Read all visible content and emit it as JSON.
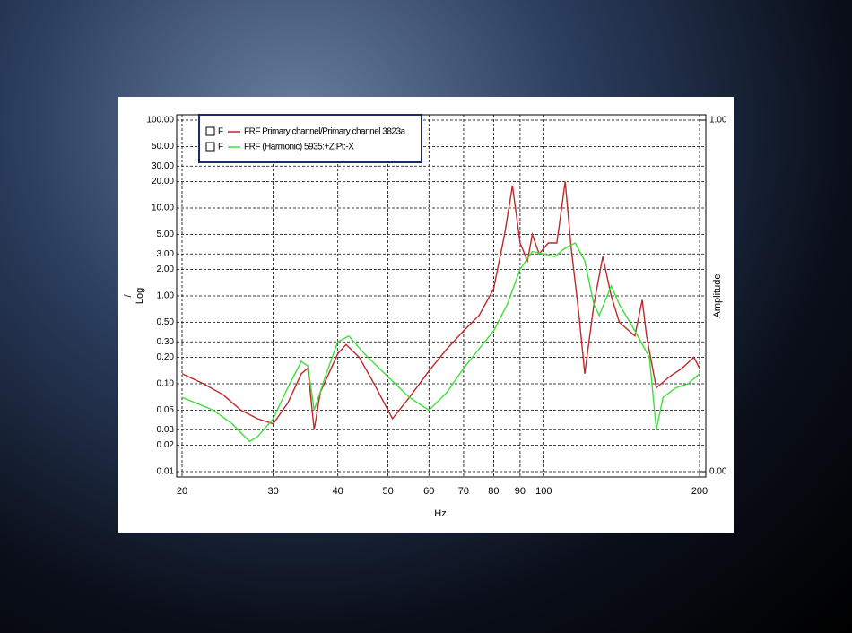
{
  "chart_data": {
    "type": "line",
    "xlabel": "Hz",
    "ylabel_lines": [
      "/",
      "Log"
    ],
    "y2label": "Amplitude",
    "xscale": "log",
    "yscale": "log",
    "grid": true,
    "xlim": [
      20,
      200
    ],
    "ylim": [
      0.01,
      100
    ],
    "y2lim": [
      0,
      1
    ],
    "xticks": [
      20,
      30,
      40,
      50,
      60,
      70,
      80,
      90,
      100,
      200
    ],
    "yticks": [
      0.01,
      0.02,
      0.03,
      0.05,
      {
        "value": 0.1,
        "label": "0.10"
      },
      {
        "value": 0.2,
        "label": "0.20"
      },
      {
        "value": 0.3,
        "label": "0.30"
      },
      {
        "value": 0.5,
        "label": "0.50"
      },
      {
        "value": 1,
        "label": "1.00"
      },
      {
        "value": 2,
        "label": "2.00"
      },
      {
        "value": 3,
        "label": "3.00"
      },
      {
        "value": 5,
        "label": "5.00"
      },
      {
        "value": 10,
        "label": "10.00"
      },
      {
        "value": 20,
        "label": "20.00"
      },
      {
        "value": 30,
        "label": "30.00"
      },
      {
        "value": 50,
        "label": "50.00"
      },
      {
        "value": 100,
        "label": "100.00"
      }
    ],
    "y2ticks": [
      {
        "value": 0,
        "label": "0.00"
      },
      {
        "value": 1,
        "label": "1.00"
      }
    ],
    "series": [
      {
        "name": "FRF Primary channel/Primary channel 3823a",
        "flag": "F",
        "color": "#c0282a",
        "x": [
          20,
          22,
          24,
          26,
          28,
          30,
          32,
          34,
          35,
          36,
          37,
          40,
          41.5,
          44,
          47,
          51,
          55,
          60,
          65,
          70,
          75,
          80,
          84,
          87,
          90,
          93,
          95,
          98,
          102,
          106,
          110,
          113,
          117,
          120,
          125,
          130,
          135,
          140,
          150,
          155,
          158,
          165,
          175,
          185,
          195,
          200
        ],
        "values": [
          0.13,
          0.1,
          0.075,
          0.05,
          0.04,
          0.035,
          0.06,
          0.13,
          0.15,
          0.03,
          0.08,
          0.22,
          0.28,
          0.2,
          0.1,
          0.04,
          0.07,
          0.14,
          0.25,
          0.4,
          0.6,
          1.2,
          5,
          18,
          4,
          2.5,
          5,
          3,
          4,
          4,
          20,
          3.5,
          0.6,
          0.13,
          0.8,
          2.8,
          1,
          0.5,
          0.35,
          0.9,
          0.35,
          0.09,
          0.12,
          0.15,
          0.2,
          0.15
        ]
      },
      {
        "name": "FRF (Harmonic) 5935:+Z:Pt:-X",
        "flag": "F",
        "color": "#3ee03a",
        "x": [
          20,
          23,
          25,
          27,
          28,
          30,
          32,
          34,
          35,
          36,
          38,
          40,
          42,
          45,
          50,
          55,
          60,
          65,
          70,
          75,
          80,
          85,
          90,
          95,
          100,
          105,
          110,
          115,
          120,
          125,
          128,
          135,
          140,
          150,
          160,
          165,
          170,
          180,
          190,
          200
        ],
        "values": [
          0.07,
          0.05,
          0.035,
          0.022,
          0.025,
          0.04,
          0.09,
          0.18,
          0.16,
          0.05,
          0.13,
          0.3,
          0.35,
          0.22,
          0.12,
          0.07,
          0.05,
          0.08,
          0.15,
          0.25,
          0.4,
          0.8,
          2,
          3.2,
          3,
          2.8,
          3.5,
          4,
          2.5,
          0.8,
          0.6,
          1.3,
          0.8,
          0.4,
          0.2,
          0.03,
          0.07,
          0.09,
          0.1,
          0.13
        ]
      }
    ]
  }
}
